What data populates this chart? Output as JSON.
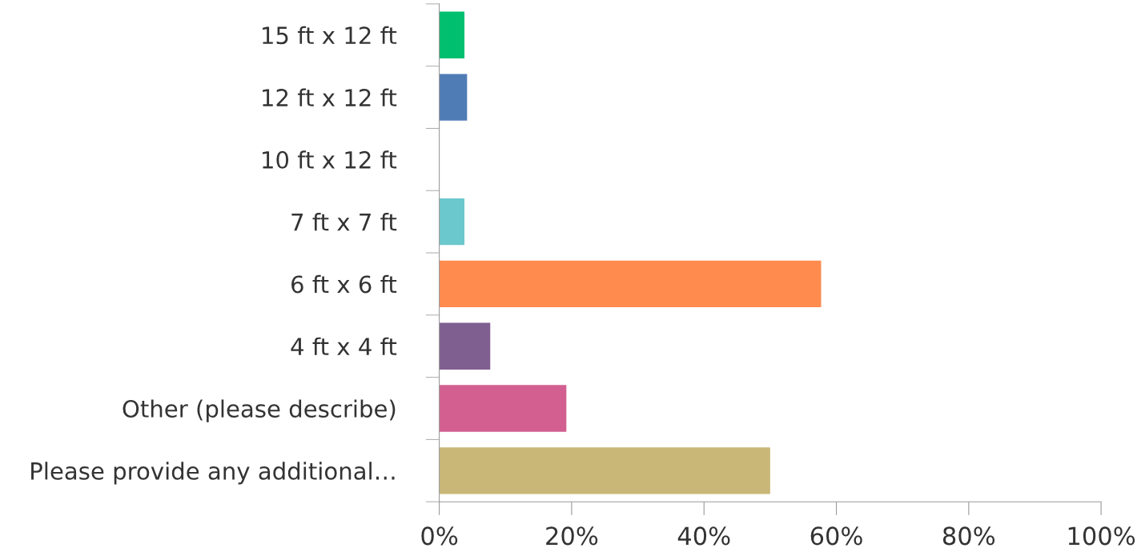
{
  "chart_data": {
    "type": "bar",
    "orientation": "horizontal",
    "categories": [
      "15 ft x 12 ft",
      "12 ft x 12 ft",
      "10 ft x 12 ft",
      "7 ft x 7 ft",
      "6 ft x 6 ft",
      "4 ft x 4 ft",
      "Other (please describe)",
      "Please provide any additional…"
    ],
    "values": [
      3.8,
      4.2,
      0,
      3.8,
      57.7,
      7.7,
      19.2,
      50.0
    ],
    "colors": [
      "#00bf6f",
      "#507cb6",
      "#9b9b9b",
      "#6bc8cd",
      "#ff8b4f",
      "#7f5f90",
      "#d25f90",
      "#c9b777"
    ],
    "xlim": [
      0,
      100
    ],
    "xticks": [
      {
        "value": 0,
        "label": "0%"
      },
      {
        "value": 20,
        "label": "20%"
      },
      {
        "value": 40,
        "label": "40%"
      },
      {
        "value": 60,
        "label": "60%"
      },
      {
        "value": 80,
        "label": "80%"
      },
      {
        "value": 100,
        "label": "100%"
      }
    ],
    "grid": false,
    "legend": false
  }
}
